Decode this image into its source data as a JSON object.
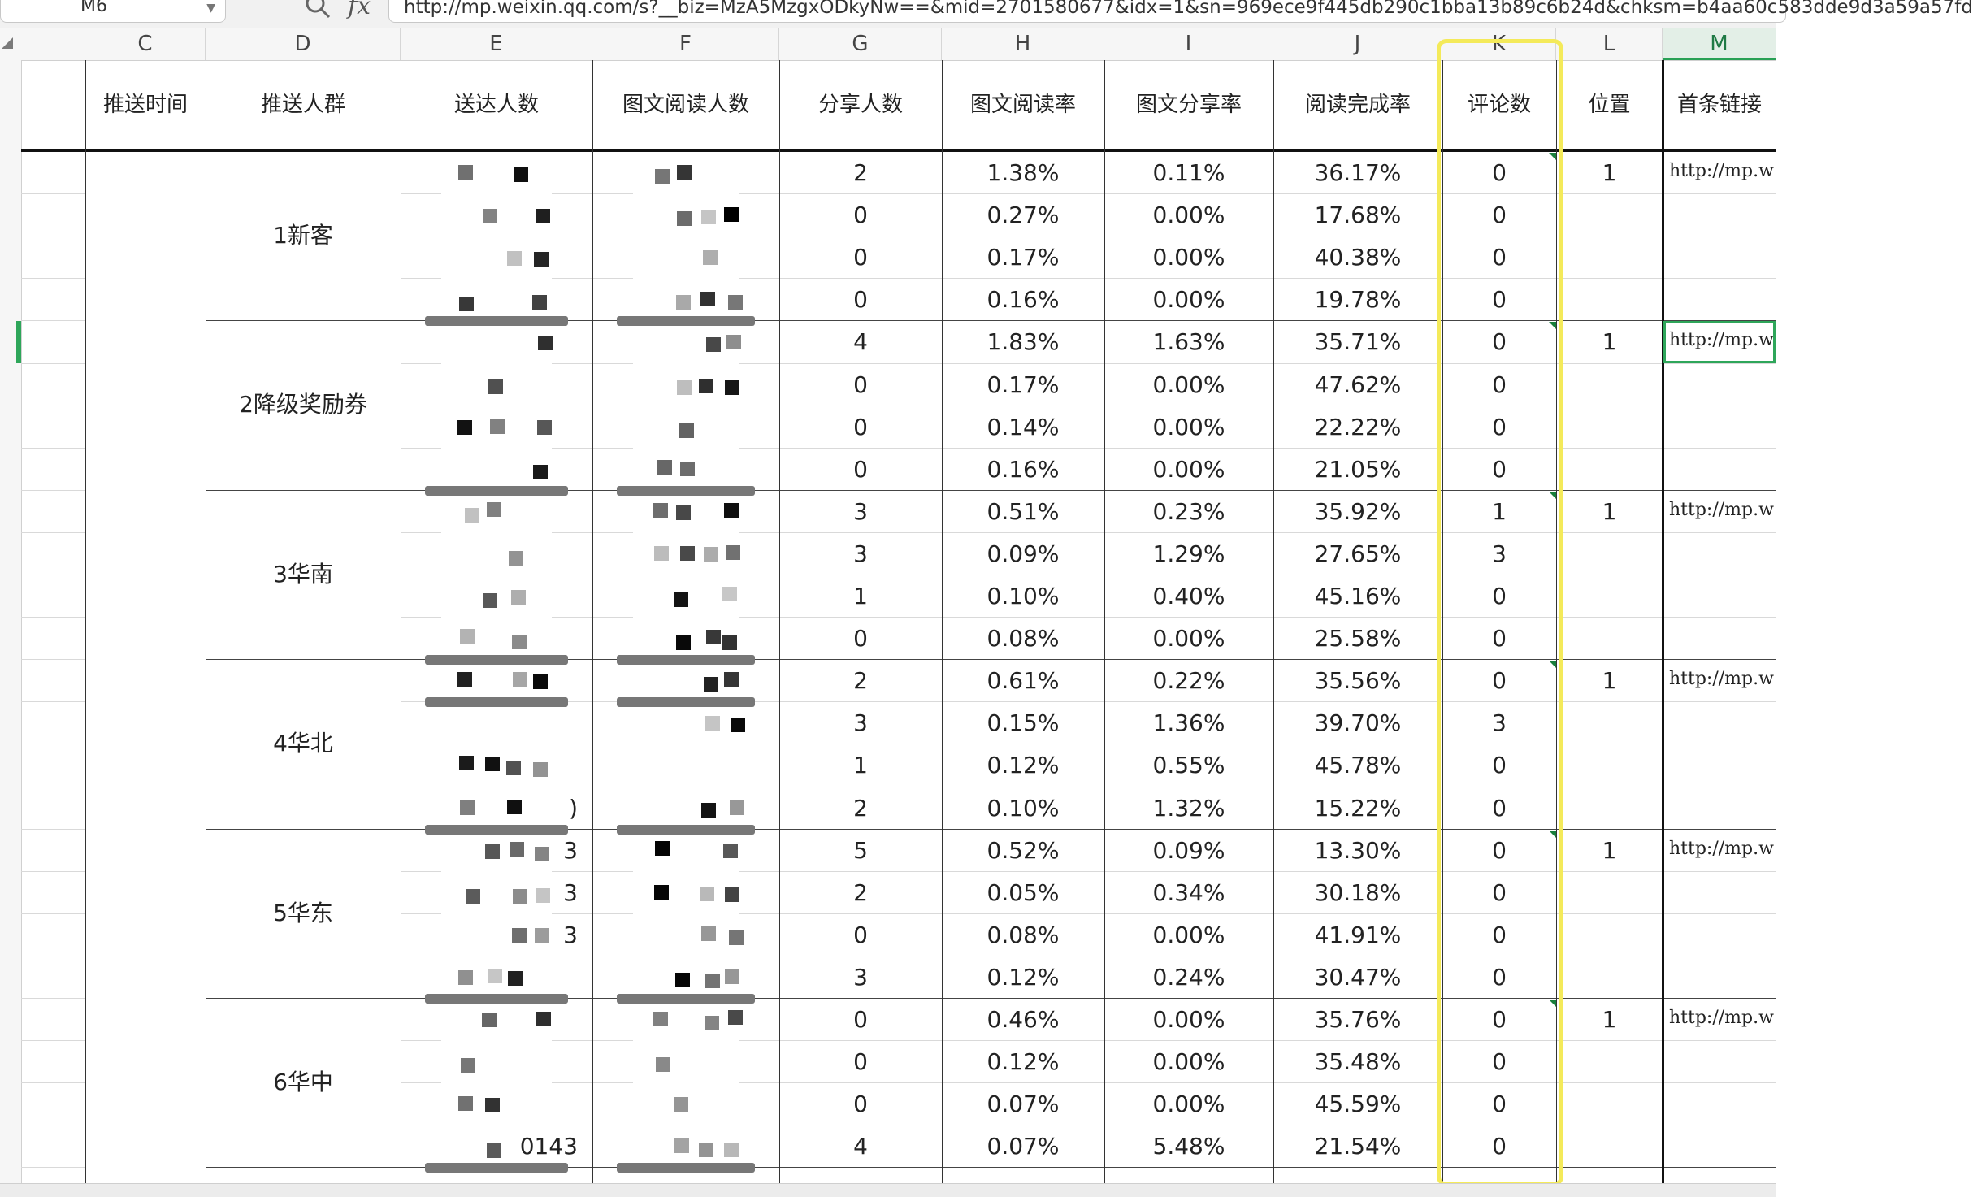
{
  "formula_bar": {
    "namebox": "M6",
    "fx": "fx",
    "formula": "http://mp.weixin.qq.com/s?__biz=MzA5MzgxODkyNw==&mid=2701580677&idx=1&sn=969ece9f445db290c1bba13b89c6b24d&chksm=b4aa60c583dde9d3a59a57fd"
  },
  "columns": [
    "C",
    "D",
    "E",
    "F",
    "G",
    "H",
    "I",
    "J",
    "K",
    "L",
    "M"
  ],
  "headers": [
    "推送时间",
    "推送人群",
    "送达人数",
    "图文阅读人数",
    "分享人数",
    "图文阅读率",
    "图文分享率",
    "阅读完成率",
    "评论数",
    "位置",
    "首条链接"
  ],
  "groups": [
    "1新客",
    "2降级奖励券",
    "3华南",
    "4华北",
    "5华东",
    "6华中"
  ],
  "rows": [
    {
      "g": "2",
      "h": "1.38%",
      "i": "0.11%",
      "j": "36.17%",
      "k": "0",
      "l": "1",
      "m": "http://mp.w"
    },
    {
      "g": "0",
      "h": "0.27%",
      "i": "0.00%",
      "j": "17.68%",
      "k": "0",
      "l": "",
      "m": ""
    },
    {
      "g": "0",
      "h": "0.17%",
      "i": "0.00%",
      "j": "40.38%",
      "k": "0",
      "l": "",
      "m": ""
    },
    {
      "g": "0",
      "h": "0.16%",
      "i": "0.00%",
      "j": "19.78%",
      "k": "0",
      "l": "",
      "m": ""
    },
    {
      "g": "4",
      "h": "1.83%",
      "i": "1.63%",
      "j": "35.71%",
      "k": "0",
      "l": "1",
      "m": "http://mp.w"
    },
    {
      "g": "0",
      "h": "0.17%",
      "i": "0.00%",
      "j": "47.62%",
      "k": "0",
      "l": "",
      "m": ""
    },
    {
      "g": "0",
      "h": "0.14%",
      "i": "0.00%",
      "j": "22.22%",
      "k": "0",
      "l": "",
      "m": ""
    },
    {
      "g": "0",
      "h": "0.16%",
      "i": "0.00%",
      "j": "21.05%",
      "k": "0",
      "l": "",
      "m": ""
    },
    {
      "g": "3",
      "h": "0.51%",
      "i": "0.23%",
      "j": "35.92%",
      "k": "1",
      "l": "1",
      "m": "http://mp.w"
    },
    {
      "g": "3",
      "h": "0.09%",
      "i": "1.29%",
      "j": "27.65%",
      "k": "3",
      "l": "",
      "m": ""
    },
    {
      "g": "1",
      "h": "0.10%",
      "i": "0.40%",
      "j": "45.16%",
      "k": "0",
      "l": "",
      "m": ""
    },
    {
      "g": "0",
      "h": "0.08%",
      "i": "0.00%",
      "j": "25.58%",
      "k": "0",
      "l": "",
      "m": ""
    },
    {
      "g": "2",
      "h": "0.61%",
      "i": "0.22%",
      "j": "35.56%",
      "k": "0",
      "l": "1",
      "m": "http://mp.w"
    },
    {
      "g": "3",
      "h": "0.15%",
      "i": "1.36%",
      "j": "39.70%",
      "k": "3",
      "l": "",
      "m": ""
    },
    {
      "g": "1",
      "h": "0.12%",
      "i": "0.55%",
      "j": "45.78%",
      "k": "0",
      "l": "",
      "m": ""
    },
    {
      "g": "2",
      "h": "0.10%",
      "i": "1.32%",
      "j": "15.22%",
      "k": "0",
      "l": "",
      "m": ""
    },
    {
      "g": "5",
      "h": "0.52%",
      "i": "0.09%",
      "j": "13.30%",
      "k": "0",
      "l": "1",
      "m": "http://mp.w"
    },
    {
      "g": "2",
      "h": "0.05%",
      "i": "0.34%",
      "j": "30.18%",
      "k": "0",
      "l": "",
      "m": ""
    },
    {
      "g": "0",
      "h": "0.08%",
      "i": "0.00%",
      "j": "41.91%",
      "k": "0",
      "l": "",
      "m": ""
    },
    {
      "g": "3",
      "h": "0.12%",
      "i": "0.24%",
      "j": "30.47%",
      "k": "0",
      "l": "",
      "m": ""
    },
    {
      "g": "0",
      "h": "0.46%",
      "i": "0.00%",
      "j": "35.76%",
      "k": "0",
      "l": "1",
      "m": "http://mp.w"
    },
    {
      "g": "0",
      "h": "0.12%",
      "i": "0.00%",
      "j": "35.48%",
      "k": "0",
      "l": "",
      "m": ""
    },
    {
      "g": "0",
      "h": "0.07%",
      "i": "0.00%",
      "j": "45.59%",
      "k": "0",
      "l": "",
      "m": ""
    },
    {
      "g": "4",
      "h": "0.07%",
      "i": "5.48%",
      "j": "21.54%",
      "k": "0",
      "l": "",
      "m": ""
    }
  ],
  "partial_e_text": [
    "3",
    "3",
    "3",
    ")",
    "0143"
  ],
  "accent_color": "#2ea65a",
  "highlight_color": "#f4ea5a"
}
